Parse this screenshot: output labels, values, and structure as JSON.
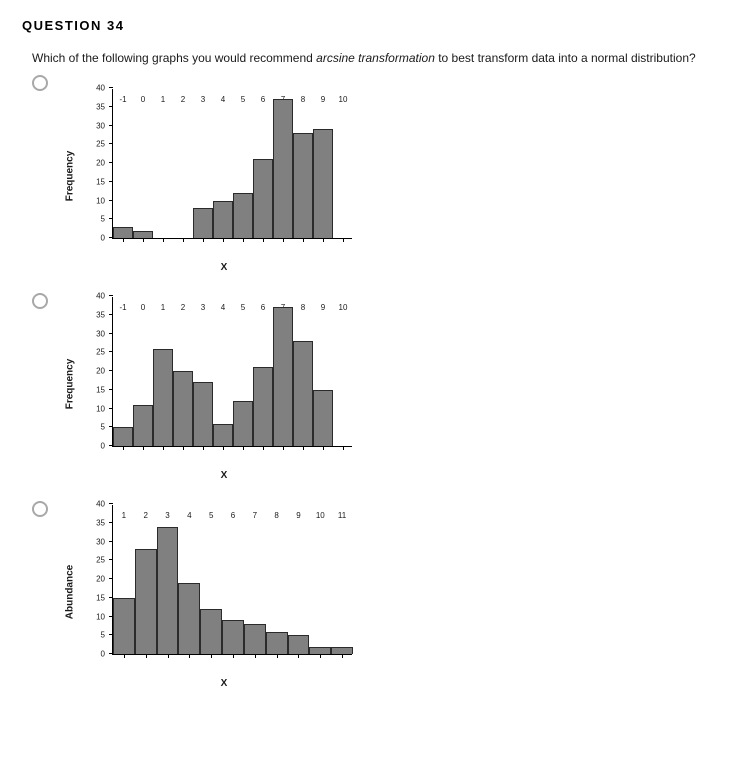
{
  "question_number_label": "QUESTION 34",
  "question_text_prefix": "Which of the following graphs you would recommend ",
  "question_text_italic": "arcsine transformation",
  "question_text_suffix": " to best transform data into a normal distribution?",
  "bar_fill": "#808080",
  "bar_stroke": "#2b2b2b",
  "options": [
    {
      "ylabel": "Frequency",
      "xlabel": "X",
      "ylim": [
        0,
        40
      ],
      "ytick_step": 5,
      "xlim": [
        -1,
        10
      ],
      "xtick_step": 1,
      "bar_width": 1.0,
      "bars": [
        {
          "x": -1,
          "y": 3
        },
        {
          "x": 0,
          "y": 2
        },
        {
          "x": 3,
          "y": 8
        },
        {
          "x": 4,
          "y": 10
        },
        {
          "x": 5,
          "y": 12
        },
        {
          "x": 6,
          "y": 21
        },
        {
          "x": 7,
          "y": 37
        },
        {
          "x": 8,
          "y": 28
        },
        {
          "x": 9,
          "y": 29
        }
      ]
    },
    {
      "ylabel": "Frequency",
      "xlabel": "X",
      "ylim": [
        0,
        40
      ],
      "ytick_step": 5,
      "xlim": [
        -1,
        10
      ],
      "xtick_step": 1,
      "bar_width": 1.0,
      "bars": [
        {
          "x": -1,
          "y": 5
        },
        {
          "x": 0,
          "y": 11
        },
        {
          "x": 1,
          "y": 26
        },
        {
          "x": 2,
          "y": 20
        },
        {
          "x": 3,
          "y": 17
        },
        {
          "x": 4,
          "y": 6
        },
        {
          "x": 5,
          "y": 12
        },
        {
          "x": 6,
          "y": 21
        },
        {
          "x": 7,
          "y": 37
        },
        {
          "x": 8,
          "y": 28
        },
        {
          "x": 9,
          "y": 15
        }
      ]
    },
    {
      "ylabel": "Abundance",
      "xlabel": "X",
      "ylim": [
        0,
        40
      ],
      "ytick_step": 5,
      "xlim": [
        1,
        11
      ],
      "xtick_step": 1,
      "bar_width": 1.0,
      "bars": [
        {
          "x": 1,
          "y": 15
        },
        {
          "x": 2,
          "y": 28
        },
        {
          "x": 3,
          "y": 34
        },
        {
          "x": 4,
          "y": 19
        },
        {
          "x": 5,
          "y": 12
        },
        {
          "x": 6,
          "y": 9
        },
        {
          "x": 7,
          "y": 8
        },
        {
          "x": 8,
          "y": 6
        },
        {
          "x": 9,
          "y": 5
        },
        {
          "x": 10,
          "y": 2
        },
        {
          "x": 11,
          "y": 2
        }
      ]
    }
  ]
}
